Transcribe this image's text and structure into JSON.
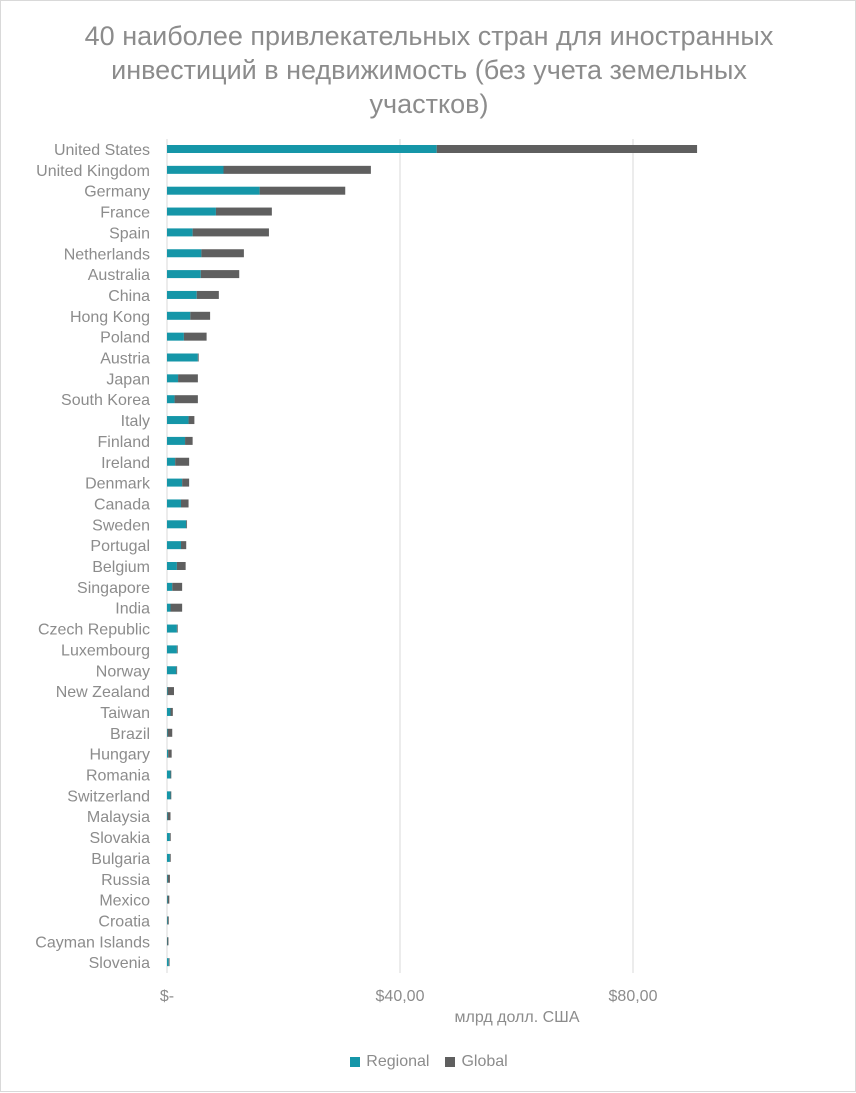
{
  "chart_data": {
    "type": "bar",
    "orientation": "horizontal",
    "stacked": true,
    "title": "40 наиболее привлекательных стран для иностранных инвестиций в недвижимость (без учета земельных участков)",
    "xlabel": "млрд долл. США",
    "ylabel": "",
    "xlim": [
      0,
      80
    ],
    "x_ticks": [
      0,
      40,
      80
    ],
    "x_tick_labels": [
      "$-",
      "$40,00",
      "$80,00"
    ],
    "grid": true,
    "legend_position": "bottom",
    "categories": [
      "United States",
      "United Kingdom",
      "Germany",
      "France",
      "Spain",
      "Netherlands",
      "Australia",
      "China",
      "Hong Kong",
      "Poland",
      "Austria",
      "Japan",
      "South Korea",
      "Italy",
      "Finland",
      "Ireland",
      "Denmark",
      "Canada",
      "Sweden",
      "Portugal",
      "Belgium",
      "Singapore",
      "India",
      "Czech Republic",
      "Luxembourg",
      "Norway",
      "New Zealand",
      "Taiwan",
      "Brazil",
      "Hungary",
      "Romania",
      "Switzerland",
      "Malaysia",
      "Slovakia",
      "Bulgaria",
      "Russia",
      "Mexico",
      "Croatia",
      "Cayman Islands",
      "Slovenia"
    ],
    "series": [
      {
        "name": "Regional",
        "color": "#1596a8",
        "values": [
          46.3,
          9.7,
          15.9,
          8.4,
          4.4,
          5.9,
          5.8,
          5.1,
          4.0,
          2.9,
          5.3,
          1.9,
          1.3,
          3.7,
          3.1,
          1.4,
          2.6,
          2.4,
          3.3,
          2.4,
          1.7,
          0.9,
          0.6,
          1.7,
          1.7,
          1.6,
          0.1,
          0.6,
          0.1,
          0.2,
          0.6,
          0.6,
          0.1,
          0.5,
          0.5,
          0.1,
          0.1,
          0.1,
          0.05,
          0.3
        ]
      },
      {
        "name": "Global",
        "color": "#5f5f5f",
        "values": [
          44.7,
          25.3,
          14.7,
          9.6,
          13.1,
          7.3,
          6.6,
          3.8,
          3.4,
          3.9,
          0.1,
          3.4,
          4.0,
          1.0,
          1.3,
          2.4,
          1.2,
          1.3,
          0.1,
          0.9,
          1.5,
          1.7,
          2.0,
          0.1,
          0.1,
          0.1,
          1.1,
          0.4,
          0.8,
          0.6,
          0.1,
          0.1,
          0.5,
          0.1,
          0.1,
          0.4,
          0.3,
          0.2,
          0.2,
          0.05
        ]
      }
    ]
  }
}
